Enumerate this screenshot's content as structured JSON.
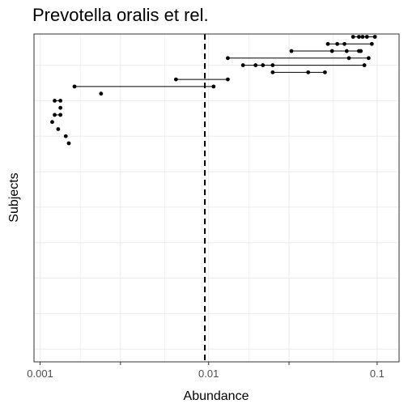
{
  "chart_data": {
    "type": "scatter",
    "title": "Prevotella oralis et rel.",
    "xlabel": "Abundance",
    "ylabel": "Subjects",
    "x_scale": "log10",
    "xlim": [
      0.00092,
      0.135
    ],
    "xticks": [
      0.001,
      0.003,
      0.01,
      0.03,
      0.1
    ],
    "xtick_labels": [
      "0.001",
      "",
      "0.01",
      "",
      "0.1"
    ],
    "threshold": 0.0095,
    "grid": true,
    "legend": "none",
    "subjects": [
      {
        "subject": 1,
        "values": [
          0.072,
          0.078,
          0.082,
          0.087,
          0.097
        ]
      },
      {
        "subject": 2,
        "values": [
          0.051,
          0.058,
          0.064,
          0.093
        ]
      },
      {
        "subject": 3,
        "values": [
          0.031,
          0.054,
          0.066,
          0.078,
          0.08
        ]
      },
      {
        "subject": 4,
        "values": [
          0.013,
          0.068,
          0.089
        ]
      },
      {
        "subject": 5,
        "values": [
          0.016,
          0.019,
          0.021,
          0.024,
          0.084
        ]
      },
      {
        "subject": 6,
        "values": [
          0.024,
          0.039,
          0.049
        ]
      },
      {
        "subject": 7,
        "values": [
          0.0064,
          0.013
        ]
      },
      {
        "subject": 8,
        "values": [
          0.0016,
          0.0107
        ]
      },
      {
        "subject": 9,
        "values": [
          0.0023
        ]
      },
      {
        "subject": 10,
        "values": [
          0.00122,
          0.00132
        ]
      },
      {
        "subject": 11,
        "values": [
          0.00132
        ]
      },
      {
        "subject": 12,
        "values": [
          0.00122,
          0.00132
        ]
      },
      {
        "subject": 13,
        "values": [
          0.00118
        ]
      },
      {
        "subject": 14,
        "values": [
          0.00128
        ]
      },
      {
        "subject": 15,
        "values": [
          0.00142
        ]
      },
      {
        "subject": 16,
        "values": [
          0.00148
        ]
      }
    ],
    "n_subjects": 46,
    "colors": {
      "points": "#000000",
      "grid": "#ebebeb",
      "threshold": "#000000",
      "panel_border": "#333333"
    }
  }
}
